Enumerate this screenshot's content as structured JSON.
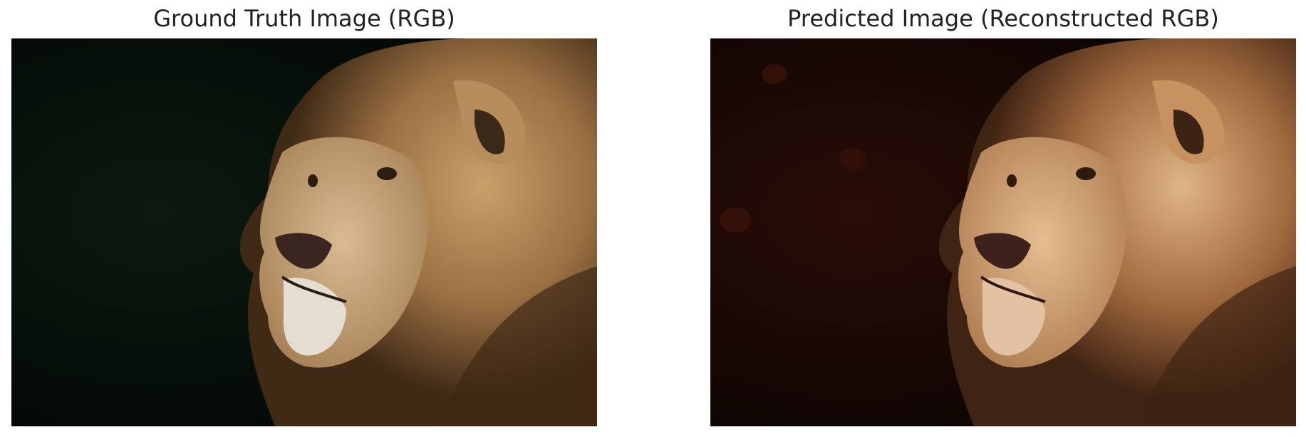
{
  "panels": [
    {
      "title": "Ground Truth Image (RGB)",
      "image_subject": "lion-portrait-photo",
      "tone": "natural",
      "colors": {
        "background": "#020503",
        "background_tint": "#0c1a10",
        "mane_light": "#c9a06a",
        "mane_mid": "#9b7043",
        "mane_dark": "#3f2a16",
        "face": "#c8a57a",
        "muzzle": "#e6ddd2",
        "nose": "#3a2521",
        "eye": "#2b1d10"
      }
    },
    {
      "title": "Predicted Image (Reconstructed RGB)",
      "image_subject": "lion-portrait-photo",
      "tone": "warm-sepia",
      "colors": {
        "background": "#080302",
        "background_tint": "#2a0d07",
        "mane_light": "#e0b585",
        "mane_mid": "#a26a3e",
        "mane_dark": "#3f2313",
        "face": "#d4a27a",
        "muzzle": "#e2c2a2",
        "nose": "#3d221c",
        "eye": "#2e1a0e"
      }
    }
  ]
}
